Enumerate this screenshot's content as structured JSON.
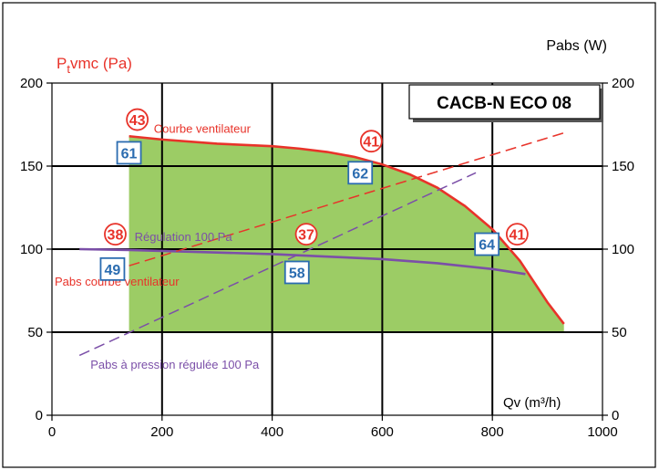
{
  "chart_data": {
    "type": "area",
    "title": "CACB-N ECO 08",
    "xlabel": "Qv (m³/h)",
    "ylabel_left": "Ptvmc (Pa)",
    "ylabel_left_base": "P",
    "ylabel_left_sub": "t",
    "ylabel_left_rest": "vmc (Pa)",
    "ylabel_right": "Pabs (W)",
    "xlim": [
      0,
      1000
    ],
    "ylim": [
      0,
      200
    ],
    "ylim_right": [
      0,
      200
    ],
    "grid": true,
    "x_ticks": [
      "0",
      "200",
      "400",
      "600",
      "800",
      "1000"
    ],
    "y_ticks": [
      "0",
      "50",
      "100",
      "150",
      "200"
    ],
    "y_ticks_right": [
      "0",
      "50",
      "100",
      "150",
      "200"
    ],
    "colors": {
      "fan_curve": "#e8332a",
      "regulation": "#7b4fa8",
      "area": "#9ccc65",
      "badge_blue": "#2b6cb0",
      "circle_red": "#e8332a",
      "axis_red_label": "#e8332a"
    },
    "series": [
      {
        "name": "Courbe ventilateur",
        "style": "solid",
        "color": "#e8332a",
        "x": [
          140,
          200,
          300,
          400,
          450,
          500,
          550,
          600,
          650,
          700,
          750,
          800,
          850,
          900,
          930
        ],
        "y": [
          168,
          166,
          163.5,
          162,
          160.5,
          158.5,
          155.5,
          151,
          145,
          137,
          126,
          112,
          93,
          68,
          55
        ]
      },
      {
        "name": "Régulation 100 Pa",
        "style": "solid",
        "color": "#7b4fa8",
        "x": [
          50,
          140,
          300,
          400,
          500,
          600,
          700,
          800,
          860
        ],
        "y": [
          100,
          99.5,
          98,
          97,
          95.5,
          94,
          91.5,
          88,
          85
        ]
      },
      {
        "name": "Pabs courbe ventilateur",
        "style": "dashed",
        "color": "#e8332a",
        "x": [
          140,
          930
        ],
        "y": [
          90,
          170
        ]
      },
      {
        "name": "Pabs à pression régulée 100 Pa",
        "style": "dashed",
        "color": "#7b4fa8",
        "x": [
          50,
          770
        ],
        "y": [
          36,
          146
        ]
      }
    ],
    "area": {
      "label": "operating range",
      "x_min": 140,
      "y_min": 50
    },
    "labels": [
      {
        "text": "Courbe ventilateur",
        "color": "#e8332a",
        "x": 185,
        "y": 170
      },
      {
        "text": "Régulation 100 Pa",
        "color": "#7b4fa8",
        "x": 150,
        "y": 105
      },
      {
        "text": "Pabs courbe ventilateur",
        "color": "#e8332a",
        "x": 5,
        "y": 78
      },
      {
        "text": "Pabs à pression régulée 100 Pa",
        "color": "#7b4fa8",
        "x": 70,
        "y": 28
      }
    ],
    "markers": [
      {
        "kind": "circle",
        "text": "43",
        "x": 155,
        "y": 178
      },
      {
        "kind": "box",
        "text": "61",
        "x": 140,
        "y": 158
      },
      {
        "kind": "circle",
        "text": "41",
        "x": 580,
        "y": 165
      },
      {
        "kind": "box",
        "text": "62",
        "x": 560,
        "y": 146
      },
      {
        "kind": "circle",
        "text": "38",
        "x": 115,
        "y": 109
      },
      {
        "kind": "circle",
        "text": "37",
        "x": 462,
        "y": 109
      },
      {
        "kind": "circle",
        "text": "41",
        "x": 845,
        "y": 109
      },
      {
        "kind": "box",
        "text": "64",
        "x": 790,
        "y": 103
      },
      {
        "kind": "box",
        "text": "49",
        "x": 110,
        "y": 88
      },
      {
        "kind": "box",
        "text": "58",
        "x": 445,
        "y": 86
      }
    ]
  }
}
